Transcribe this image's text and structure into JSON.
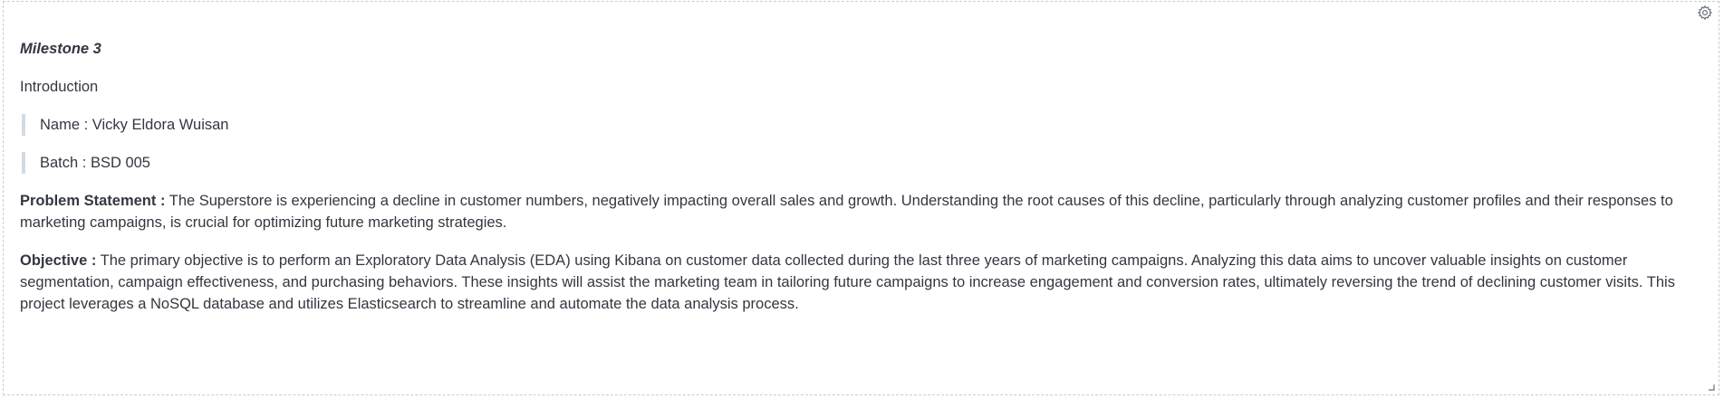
{
  "icons": {
    "settings": "gear-icon",
    "resize": "resize-handle-icon"
  },
  "colors": {
    "text": "#343741",
    "border": "#c8ccd6",
    "quote_bar": "#d3dae6"
  },
  "markdown": {
    "title": "Milestone 3",
    "intro": "Introduction",
    "name_line": "Name : Vicky Eldora Wuisan",
    "batch_line": "Batch : BSD 005",
    "problem_label": "Problem Statement :",
    "problem_text": " The Superstore is experiencing a decline in customer numbers, negatively impacting overall sales and growth. Understanding the root causes of this decline, particularly through analyzing customer profiles and their responses to marketing campaigns, is crucial for optimizing future marketing strategies.",
    "objective_label": "Objective :",
    "objective_text": " The primary objective is to perform an Exploratory Data Analysis (EDA) using Kibana on customer data collected during the last three years of marketing campaigns. Analyzing this data aims to uncover valuable insights on customer segmentation, campaign effectiveness, and purchasing behaviors. These insights will assist the marketing team in tailoring future campaigns to increase engagement and conversion rates, ultimately reversing the trend of declining customer visits. This project leverages a NoSQL database and utilizes Elasticsearch to streamline and automate the data analysis process."
  }
}
